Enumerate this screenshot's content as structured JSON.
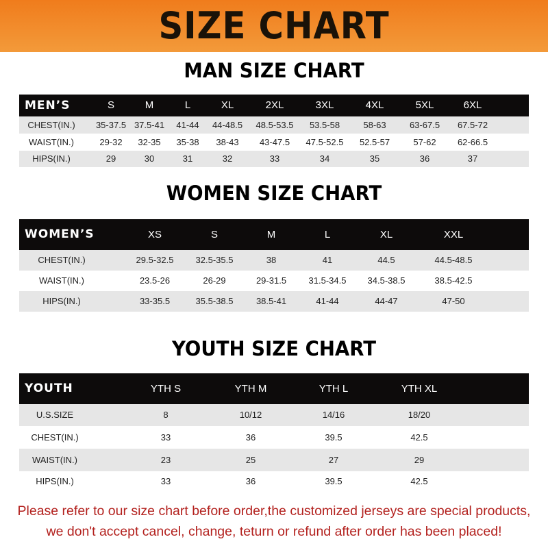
{
  "title": "SIZE CHART",
  "men": {
    "title": "MAN SIZE CHART",
    "header": [
      "MEN’S",
      "S",
      "M",
      "L",
      "XL",
      "2XL",
      "3XL",
      "4XL",
      "5XL",
      "6XL"
    ],
    "rows": [
      [
        "CHEST(IN.)",
        "35-37.5",
        "37.5-41",
        "41-44",
        "44-48.5",
        "48.5-53.5",
        "53.5-58",
        "58-63",
        "63-67.5",
        "67.5-72"
      ],
      [
        "WAIST(IN.)",
        "29-32",
        "32-35",
        "35-38",
        "38-43",
        "43-47.5",
        "47.5-52.5",
        "52.5-57",
        "57-62",
        "62-66.5"
      ],
      [
        "HIPS(IN.)",
        "29",
        "30",
        "31",
        "32",
        "33",
        "34",
        "35",
        "36",
        "37"
      ]
    ]
  },
  "women": {
    "title": "WOMEN SIZE CHART",
    "header": [
      "WOMEN’S",
      "XS",
      "S",
      "M",
      "L",
      "XL",
      "XXL"
    ],
    "rows": [
      [
        "CHEST(IN.)",
        "29.5-32.5",
        "32.5-35.5",
        "38",
        "41",
        "44.5",
        "44.5-48.5"
      ],
      [
        "WAIST(IN.)",
        "23.5-26",
        "26-29",
        "29-31.5",
        "31.5-34.5",
        "34.5-38.5",
        "38.5-42.5"
      ],
      [
        "HIPS(IN.)",
        "33-35.5",
        "35.5-38.5",
        "38.5-41",
        "41-44",
        "44-47",
        "47-50"
      ]
    ]
  },
  "youth": {
    "title": "YOUTH SIZE CHART",
    "header": [
      "YOUTH",
      "YTH S",
      "YTH M",
      "YTH L",
      "YTH XL"
    ],
    "rows": [
      [
        "U.S.SIZE",
        "8",
        "10/12",
        "14/16",
        "18/20"
      ],
      [
        "CHEST(IN.)",
        "33",
        "36",
        "39.5",
        "42.5"
      ],
      [
        "WAIST(IN.)",
        "23",
        "25",
        "27",
        "29"
      ],
      [
        "HIPS(IN.)",
        "33",
        "36",
        "39.5",
        "42.5"
      ]
    ]
  },
  "footer": {
    "line1": "Please refer to our size chart before order,the customized jerseys are special products,",
    "line2": "we don't accept cancel, change, teturn or refund after order has been placed!"
  },
  "colors": {
    "banner": "#f08a24",
    "header_bar": "#0d0b0b",
    "stripe": "#e6e6e6",
    "footer_text": "#b3211e"
  }
}
